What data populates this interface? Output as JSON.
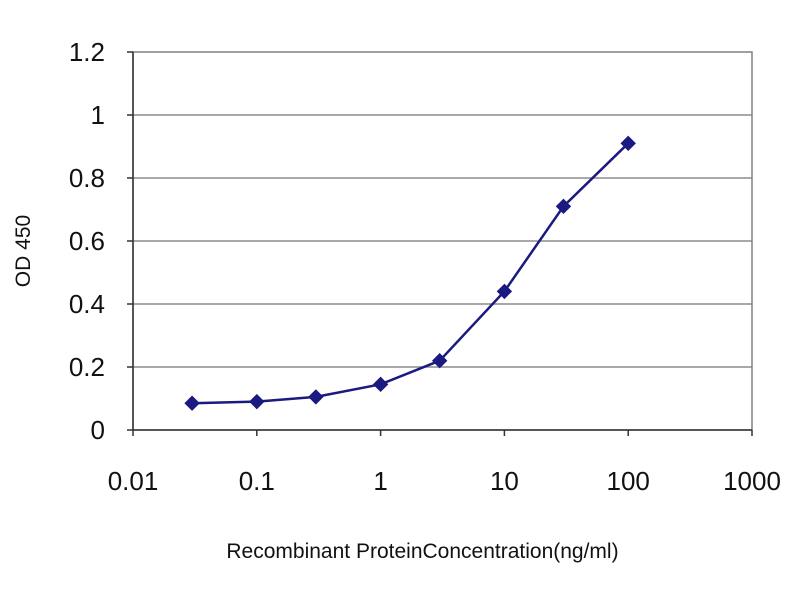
{
  "chart_data": {
    "type": "line",
    "title": "",
    "xlabel": "Recombinant ProteinConcentration(ng/ml)",
    "ylabel": "OD 450",
    "x_scale": "log",
    "xlim": [
      0.01,
      1000
    ],
    "ylim": [
      0,
      1.2
    ],
    "x_ticks": [
      0.01,
      0.1,
      1,
      10,
      100,
      1000
    ],
    "x_tick_labels": [
      "0.01",
      "0.1",
      "1",
      "10",
      "100",
      "1000"
    ],
    "y_ticks": [
      0,
      0.2,
      0.4,
      0.6,
      0.8,
      1,
      1.2
    ],
    "y_tick_labels": [
      "0",
      "0.2",
      "0.4",
      "0.6",
      "0.8",
      "1",
      "1.2"
    ],
    "grid": "horizontal",
    "legend": "none",
    "series": [
      {
        "color": "#1a1a80",
        "marker": "diamond",
        "x": [
          0.03,
          0.1,
          0.3,
          1,
          3,
          10,
          30,
          100
        ],
        "y": [
          0.085,
          0.09,
          0.105,
          0.145,
          0.22,
          0.44,
          0.71,
          0.91
        ]
      }
    ]
  }
}
